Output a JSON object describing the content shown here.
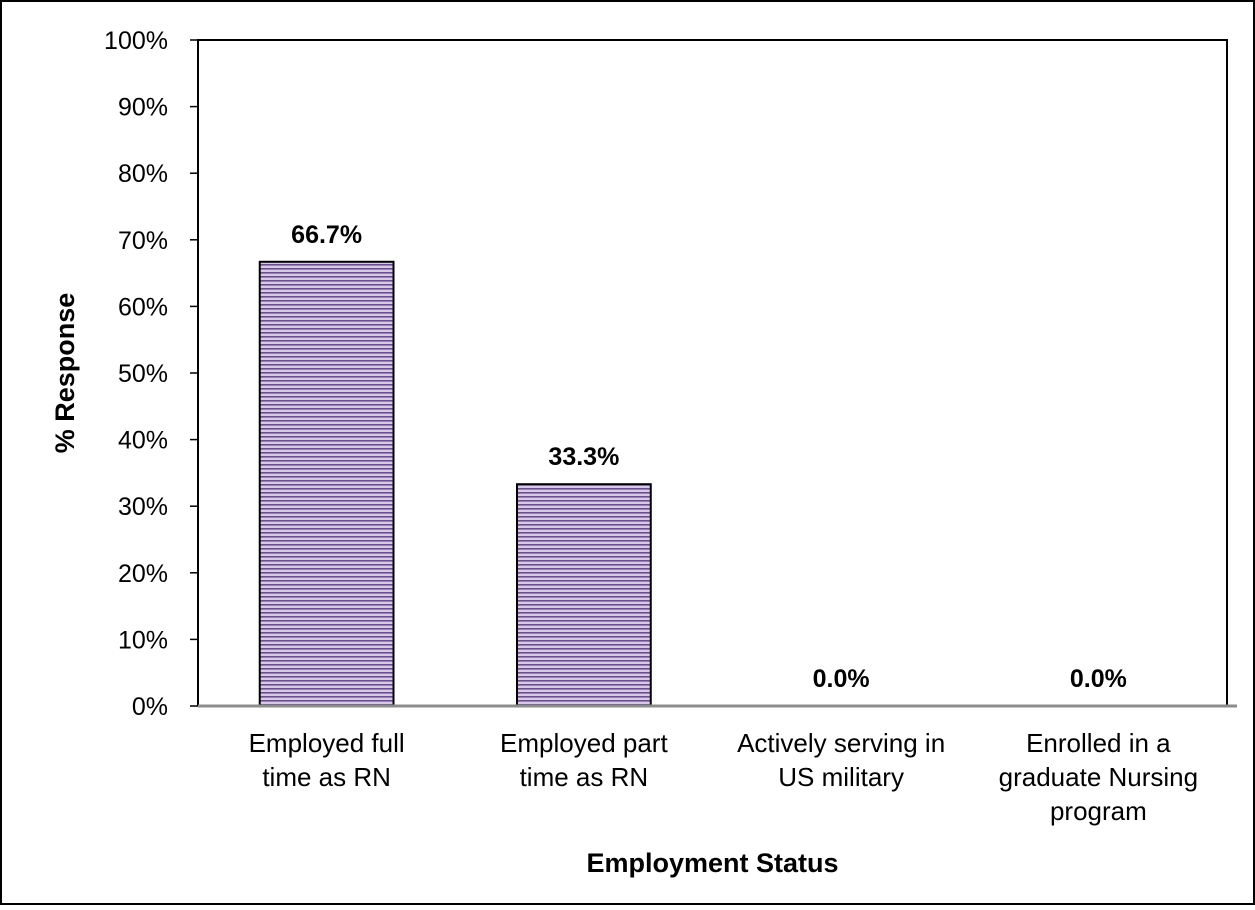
{
  "chart_data": {
    "type": "bar",
    "categories": [
      [
        "Employed full",
        "time as RN"
      ],
      [
        "Employed part",
        "time as RN"
      ],
      [
        "Actively serving in",
        "US military"
      ],
      [
        "Enrolled in a",
        "graduate Nursing",
        "program"
      ]
    ],
    "values": [
      66.7,
      33.3,
      0.0,
      0.0
    ],
    "data_labels": [
      "66.7%",
      "33.3%",
      "0.0%",
      "0.0%"
    ],
    "xlabel": "Employment Status",
    "ylabel": "% Response",
    "ylim": [
      0,
      100
    ],
    "yticks": [
      "0%",
      "10%",
      "20%",
      "30%",
      "40%",
      "50%",
      "60%",
      "70%",
      "80%",
      "90%",
      "100%"
    ],
    "grid": false,
    "legend": "none",
    "bar_fill_color": "#d9c9e8",
    "bar_stripe_color": "#6a4f8c",
    "bar_edge_color": "#000000"
  }
}
